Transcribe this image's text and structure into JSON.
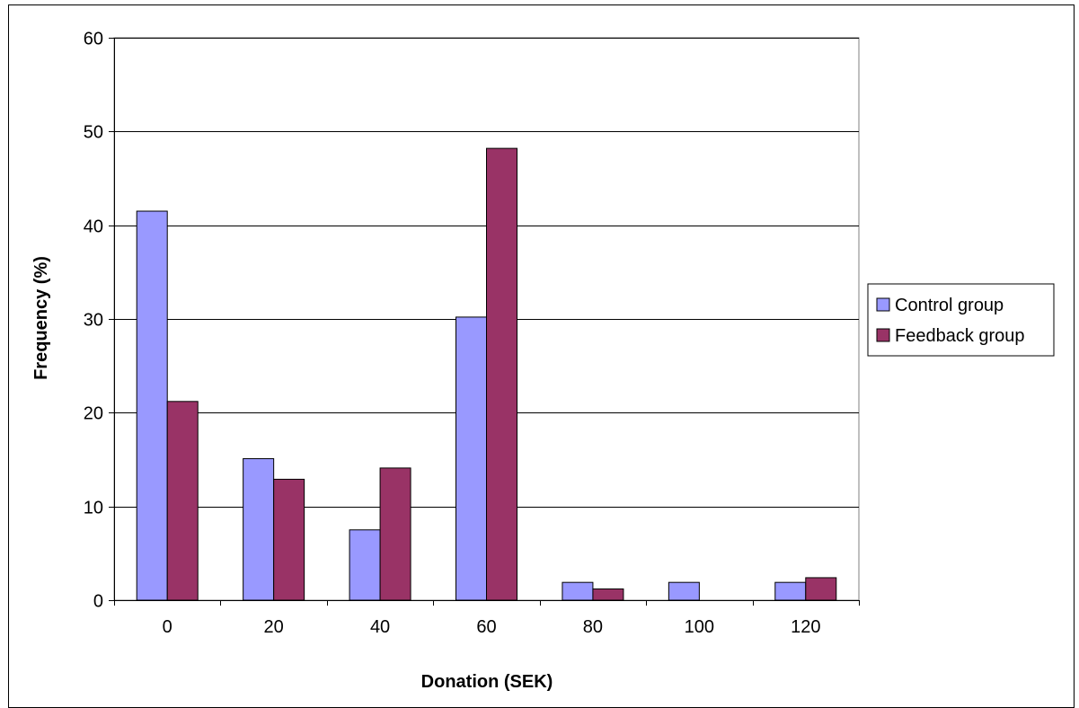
{
  "chart_data": {
    "type": "bar",
    "title": "",
    "xlabel": "Donation (SEK)",
    "ylabel": "Frequency (%)",
    "categories": [
      "0",
      "20",
      "40",
      "60",
      "80",
      "100",
      "120"
    ],
    "yticks": [
      "0",
      "10",
      "20",
      "30",
      "40",
      "50",
      "60"
    ],
    "ylim": [
      0,
      60
    ],
    "grid": true,
    "legend_position": "right",
    "series": [
      {
        "name": "Control group",
        "color": "#9999ff",
        "values": [
          41.5,
          15.1,
          7.5,
          30.2,
          1.9,
          1.9,
          1.9
        ]
      },
      {
        "name": "Feedback group",
        "color": "#993366",
        "values": [
          21.2,
          12.9,
          14.1,
          48.2,
          1.2,
          0,
          2.4
        ]
      }
    ]
  }
}
